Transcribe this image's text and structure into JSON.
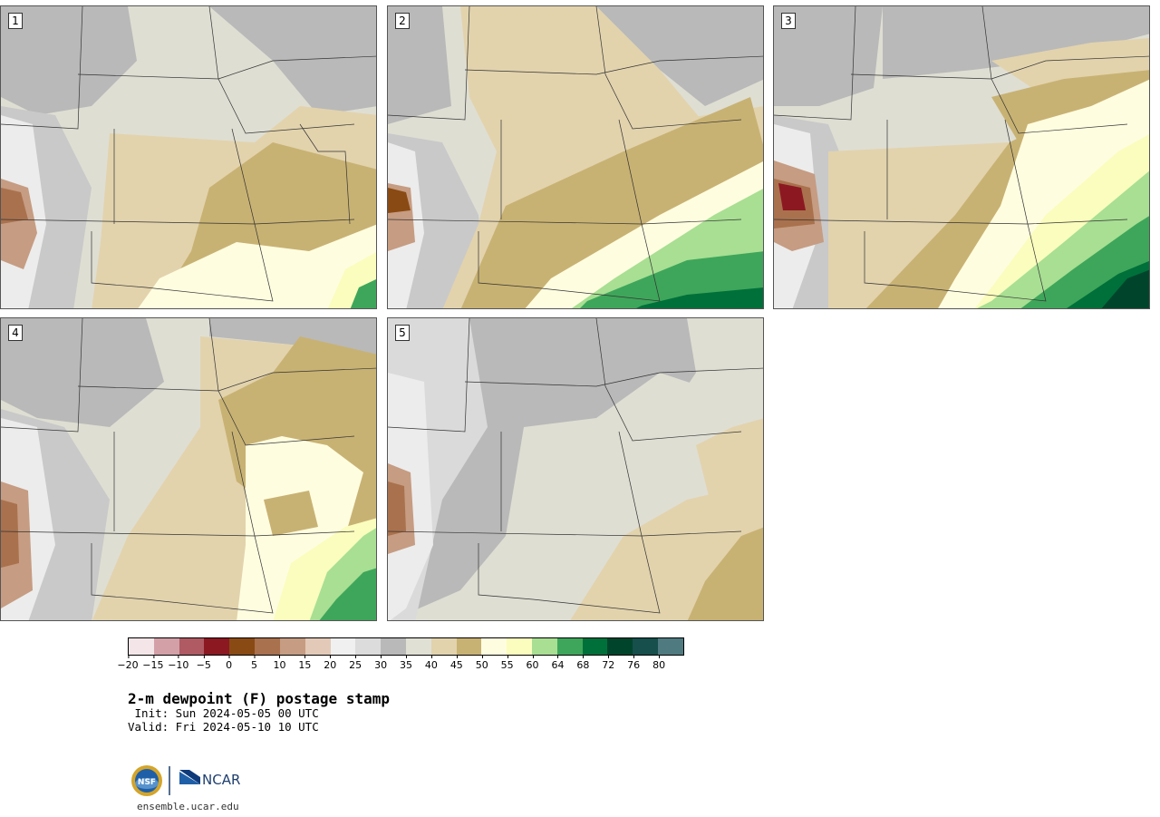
{
  "panels": [
    {
      "label": "1"
    },
    {
      "label": "2"
    },
    {
      "label": "3"
    },
    {
      "label": "4"
    },
    {
      "label": "5"
    }
  ],
  "colorbar": {
    "colors": [
      "#f3e5e8",
      "#d3a0a8",
      "#b05a63",
      "#8c1822",
      "#8a4a13",
      "#a9714d",
      "#c69c82",
      "#e3cab8",
      "#f0f0f0",
      "#dcdcdc",
      "#b9b9b9",
      "#e0e0d4",
      "#e2d3ad",
      "#c8b273",
      "#fffde0",
      "#fafdbd",
      "#a8df93",
      "#3ea65a",
      "#00703a",
      "#00452b",
      "#164f4b",
      "#4f7a80"
    ],
    "ticks": [
      "−20",
      "−15",
      "−10",
      "−5",
      "0",
      "5",
      "10",
      "15",
      "20",
      "25",
      "30",
      "35",
      "40",
      "45",
      "50",
      "55",
      "60",
      "64",
      "68",
      "72",
      "76",
      "80"
    ]
  },
  "title": "2-m dewpoint (F) postage stamp",
  "init_line": " Init: Sun 2024-05-05 00 UTC",
  "valid_line": "Valid: Fri 2024-05-10 10 UTC",
  "logos": {
    "nsf": "NSF",
    "ncar": "NCAR"
  },
  "website": "ensemble.ucar.edu"
}
